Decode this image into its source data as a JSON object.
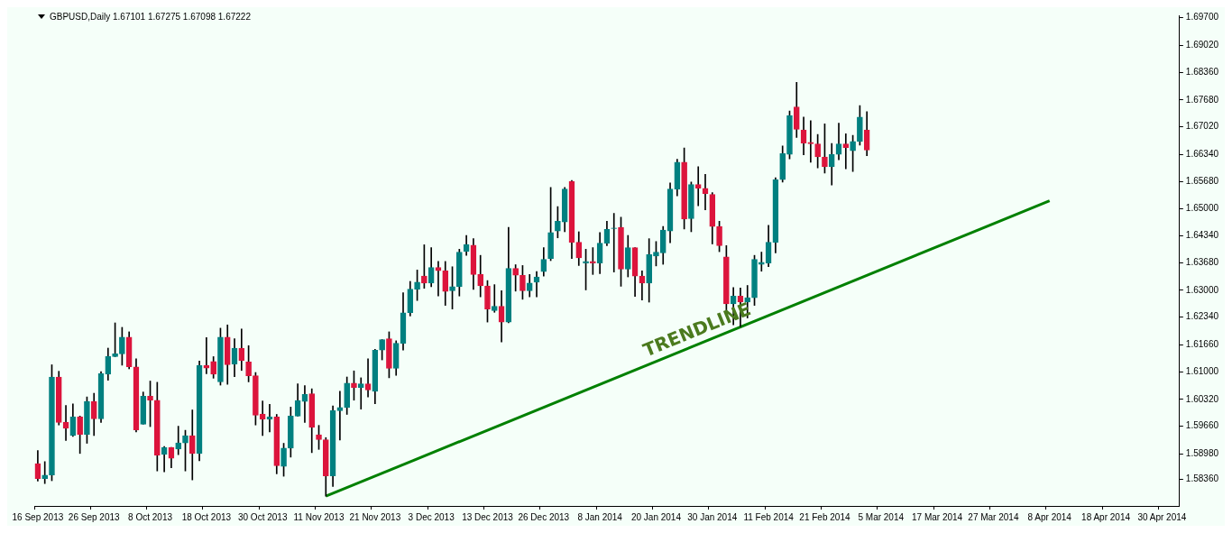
{
  "chart_data": {
    "type": "candlestick",
    "title": "GBPUSD,Daily 1.67101 1.67275 1.67098 1.67222",
    "categories": [
      "16 Sep 2013",
      null,
      null,
      null,
      null,
      null,
      null,
      null,
      "26 Sep 2013",
      null,
      null,
      null,
      null,
      null,
      null,
      null,
      "8 Oct 2013",
      null,
      null,
      null,
      null,
      null,
      null,
      null,
      "18 Oct 2013",
      null,
      null,
      null,
      null,
      null,
      null,
      null,
      "30 Oct 2013",
      null,
      null,
      null,
      null,
      null,
      null,
      null,
      "11 Nov 2013",
      null,
      null,
      null,
      null,
      null,
      null,
      null,
      "21 Nov 2013",
      null,
      null,
      null,
      null,
      null,
      null,
      null,
      "3 Dec 2013",
      null,
      null,
      null,
      null,
      null,
      null,
      null,
      "13 Dec 2013",
      null,
      null,
      null,
      null,
      null,
      null,
      null,
      "26 Dec 2013",
      null,
      null,
      null,
      null,
      null,
      null,
      null,
      "8 Jan 2014",
      null,
      null,
      null,
      null,
      null,
      null,
      null,
      "20 Jan 2014",
      null,
      null,
      null,
      null,
      null,
      null,
      null,
      "30 Jan 2014",
      null,
      null,
      null,
      null,
      null,
      null,
      null,
      "11 Feb 2014",
      null,
      null,
      null,
      null,
      null,
      null,
      null,
      "21 Feb 2014",
      null,
      null,
      null,
      null,
      null,
      null,
      null,
      "5 Mar 2014",
      null,
      null,
      null,
      null,
      null,
      null,
      null,
      "17 Mar 2014",
      null,
      null,
      null,
      null,
      null,
      null,
      null,
      "27 Mar 2014",
      null,
      null,
      null,
      null,
      null,
      null,
      null,
      "8 Apr 2014",
      null,
      null,
      null,
      null,
      null,
      null,
      null,
      "18 Apr 2014",
      null,
      null,
      null,
      null,
      null,
      null,
      null,
      "30 Apr 2014",
      null,
      null
    ],
    "ohlc": [
      [
        1.5874,
        1.5906,
        1.5831,
        1.5837
      ],
      [
        1.5837,
        1.5879,
        1.5825,
        1.5846
      ],
      [
        1.5846,
        1.6117,
        1.5832,
        1.6087
      ],
      [
        1.6087,
        1.6101,
        1.5969,
        1.5975
      ],
      [
        1.5976,
        1.6017,
        1.5931,
        1.5961
      ],
      [
        1.5943,
        1.6021,
        1.5941,
        1.5989
      ],
      [
        1.5989,
        1.5991,
        1.5899,
        1.5946
      ],
      [
        1.5946,
        1.6038,
        1.5924,
        1.6027
      ],
      [
        1.6027,
        1.6047,
        1.5943,
        1.5984
      ],
      [
        1.5984,
        1.61,
        1.5975,
        1.6095
      ],
      [
        1.6094,
        1.6158,
        1.6079,
        1.6138
      ],
      [
        1.6137,
        1.622,
        1.6137,
        1.6144
      ],
      [
        1.6144,
        1.6209,
        1.6116,
        1.6185
      ],
      [
        1.6185,
        1.6198,
        1.6107,
        1.6112
      ],
      [
        1.6112,
        1.6132,
        1.5952,
        1.5957
      ],
      [
        1.5971,
        1.605,
        1.5971,
        1.604
      ],
      [
        1.604,
        1.6077,
        1.5965,
        1.603
      ],
      [
        1.603,
        1.6074,
        1.5856,
        1.5895
      ],
      [
        1.5897,
        1.5916,
        1.5854,
        1.5914
      ],
      [
        1.5914,
        1.5914,
        1.5864,
        1.5887
      ],
      [
        1.591,
        1.5966,
        1.5896,
        1.5925
      ],
      [
        1.5925,
        1.5956,
        1.5856,
        1.5943
      ],
      [
        1.5943,
        1.6006,
        1.5834,
        1.5899
      ],
      [
        1.5899,
        1.6126,
        1.5881,
        1.6115
      ],
      [
        1.6115,
        1.6184,
        1.6095,
        1.6109
      ],
      [
        1.6125,
        1.6137,
        1.6084,
        1.6094
      ],
      [
        1.6075,
        1.6207,
        1.6067,
        1.6185
      ],
      [
        1.6185,
        1.6215,
        1.6069,
        1.6117
      ],
      [
        1.6119,
        1.6181,
        1.6088,
        1.6158
      ],
      [
        1.6158,
        1.6205,
        1.6103,
        1.6127
      ],
      [
        1.6124,
        1.6164,
        1.6075,
        1.609
      ],
      [
        1.609,
        1.6098,
        1.5969,
        1.5993
      ],
      [
        1.5996,
        1.6028,
        1.5943,
        1.5983
      ],
      [
        1.5983,
        1.602,
        1.5952,
        1.5989
      ],
      [
        1.5989,
        1.5995,
        1.5849,
        1.5869
      ],
      [
        1.5867,
        1.5924,
        1.5843,
        1.5912
      ],
      [
        1.5912,
        1.6013,
        1.589,
        1.5991
      ],
      [
        1.5991,
        1.607,
        1.5991,
        1.6029
      ],
      [
        1.6027,
        1.6066,
        1.5975,
        1.6044
      ],
      [
        1.6046,
        1.6058,
        1.5901,
        1.5963
      ],
      [
        1.5945,
        1.5968,
        1.5909,
        1.5933
      ],
      [
        1.5933,
        1.5938,
        1.5794,
        1.5844
      ],
      [
        1.5844,
        1.6016,
        1.5818,
        1.6004
      ],
      [
        1.6004,
        1.6052,
        1.5932,
        1.6012
      ],
      [
        1.6012,
        1.6087,
        1.5995,
        1.6072
      ],
      [
        1.6072,
        1.6102,
        1.603,
        1.6061
      ],
      [
        1.6061,
        1.6085,
        1.6008,
        1.607
      ],
      [
        1.607,
        1.6132,
        1.6038,
        1.6055
      ],
      [
        1.6052,
        1.6155,
        1.6021,
        1.6153
      ],
      [
        1.6153,
        1.6179,
        1.6129,
        1.6179
      ],
      [
        1.6181,
        1.6198,
        1.6085,
        1.6108
      ],
      [
        1.6108,
        1.6176,
        1.6091,
        1.617
      ],
      [
        1.617,
        1.6294,
        1.6153,
        1.6245
      ],
      [
        1.6245,
        1.6322,
        1.6237,
        1.6303
      ],
      [
        1.6303,
        1.635,
        1.6275,
        1.632
      ],
      [
        1.6335,
        1.6412,
        1.6305,
        1.6318
      ],
      [
        1.6318,
        1.6405,
        1.6309,
        1.6356
      ],
      [
        1.6356,
        1.6371,
        1.6286,
        1.6348
      ],
      [
        1.6348,
        1.6371,
        1.6263,
        1.6297
      ],
      [
        1.6299,
        1.6358,
        1.6254,
        1.6309
      ],
      [
        1.6309,
        1.6401,
        1.6286,
        1.6394
      ],
      [
        1.6396,
        1.6435,
        1.6386,
        1.6413
      ],
      [
        1.6411,
        1.6427,
        1.6302,
        1.6339
      ],
      [
        1.6339,
        1.6386,
        1.6284,
        1.6311
      ],
      [
        1.6311,
        1.6324,
        1.6222,
        1.6254
      ],
      [
        1.625,
        1.6314,
        1.6246,
        1.6261
      ],
      [
        1.6261,
        1.6299,
        1.6173,
        1.6222
      ],
      [
        1.6222,
        1.6455,
        1.622,
        1.6354
      ],
      [
        1.6354,
        1.6363,
        1.6298,
        1.6337
      ],
      [
        1.6337,
        1.6361,
        1.6278,
        1.6299
      ],
      [
        1.6299,
        1.6339,
        1.6284,
        1.6318
      ],
      [
        1.632,
        1.6346,
        1.6284,
        1.6333
      ],
      [
        1.6346,
        1.6405,
        1.6335,
        1.6376
      ],
      [
        1.6378,
        1.6553,
        1.6373,
        1.6442
      ],
      [
        1.6446,
        1.6506,
        1.6429,
        1.647
      ],
      [
        1.6468,
        1.6553,
        1.6444,
        1.6549
      ],
      [
        1.6568,
        1.657,
        1.6378,
        1.6418
      ],
      [
        1.6418,
        1.6444,
        1.6361,
        1.638
      ],
      [
        1.6367,
        1.6401,
        1.6301,
        1.6371
      ],
      [
        1.6371,
        1.6405,
        1.6339,
        1.6367
      ],
      [
        1.6367,
        1.6442,
        1.6341,
        1.6416
      ],
      [
        1.6416,
        1.647,
        1.641,
        1.645
      ],
      [
        1.6452,
        1.6489,
        1.6345,
        1.6453
      ],
      [
        1.6455,
        1.648,
        1.631,
        1.6352
      ],
      [
        1.6352,
        1.6435,
        1.6333,
        1.6405
      ],
      [
        1.6405,
        1.6405,
        1.6285,
        1.6335
      ],
      [
        1.6335,
        1.6348,
        1.6276,
        1.6318
      ],
      [
        1.6318,
        1.6427,
        1.6271,
        1.6388
      ],
      [
        1.6384,
        1.642,
        1.636,
        1.6394
      ],
      [
        1.6392,
        1.6457,
        1.6364,
        1.6448
      ],
      [
        1.6446,
        1.6564,
        1.6417,
        1.6549
      ],
      [
        1.6549,
        1.6622,
        1.6532,
        1.6615
      ],
      [
        1.6615,
        1.665,
        1.6451,
        1.6475
      ],
      [
        1.6476,
        1.6566,
        1.6444,
        1.656
      ],
      [
        1.656,
        1.6604,
        1.6508,
        1.6551
      ],
      [
        1.6551,
        1.6585,
        1.6498,
        1.6538
      ],
      [
        1.6536,
        1.654,
        1.6414,
        1.6457
      ],
      [
        1.6457,
        1.647,
        1.6395,
        1.641
      ],
      [
        1.6382,
        1.641,
        1.625,
        1.6267
      ],
      [
        1.6267,
        1.6307,
        1.6215,
        1.6286
      ],
      [
        1.6286,
        1.6306,
        1.6211,
        1.6271
      ],
      [
        1.6271,
        1.6312,
        1.6232,
        1.6282
      ],
      [
        1.6282,
        1.6386,
        1.6263,
        1.6376
      ],
      [
        1.6364,
        1.6394,
        1.6347,
        1.6369
      ],
      [
        1.6367,
        1.646,
        1.6358,
        1.6418
      ],
      [
        1.6418,
        1.6577,
        1.6392,
        1.6572
      ],
      [
        1.6572,
        1.6655,
        1.6566,
        1.6636
      ],
      [
        1.6634,
        1.6741,
        1.6623,
        1.673
      ],
      [
        1.6751,
        1.6811,
        1.6676,
        1.6696
      ],
      [
        1.6694,
        1.6726,
        1.6633,
        1.6662
      ],
      [
        1.6664,
        1.6717,
        1.6615,
        1.666
      ],
      [
        1.666,
        1.6683,
        1.6601,
        1.6628
      ],
      [
        1.6628,
        1.6709,
        1.6588,
        1.6604
      ],
      [
        1.6604,
        1.6661,
        1.6559,
        1.6634
      ],
      [
        1.6634,
        1.6711,
        1.6621,
        1.666
      ],
      [
        1.666,
        1.6685,
        1.6599,
        1.6651
      ],
      [
        1.6643,
        1.6681,
        1.6592,
        1.6666
      ],
      [
        1.6666,
        1.6754,
        1.6657,
        1.6726
      ],
      [
        1.6694,
        1.6739,
        1.6631,
        1.6645
      ],
      null,
      null,
      null,
      null,
      null,
      null,
      null,
      null,
      null,
      null,
      null,
      null,
      null,
      null,
      null,
      null,
      null,
      null,
      null,
      null,
      null,
      null,
      null,
      null,
      null,
      null,
      null,
      null,
      null,
      null,
      null,
      null,
      null,
      null,
      null,
      null,
      null,
      null,
      null,
      null,
      null,
      null,
      null,
      null
    ],
    "colors": [
      "#dc143c",
      "#008080",
      "#008080",
      "#dc143c",
      "#dc143c",
      "#008080",
      "#dc143c",
      "#008080",
      "#dc143c",
      "#008080",
      "#008080",
      "#008080",
      "#008080",
      "#dc143c",
      "#dc143c",
      "#008080",
      "#dc143c",
      "#dc143c",
      "#008080",
      "#dc143c",
      "#008080",
      "#008080",
      "#dc143c",
      "#008080",
      "#dc143c",
      "#dc143c",
      "#008080",
      "#dc143c",
      "#008080",
      "#dc143c",
      "#dc143c",
      "#dc143c",
      "#dc143c",
      "#008080",
      "#dc143c",
      "#008080",
      "#008080",
      "#008080",
      "#008080",
      "#dc143c",
      "#dc143c",
      "#dc143c",
      "#008080",
      "#008080",
      "#008080",
      "#dc143c",
      "#008080",
      "#dc143c",
      "#008080",
      "#008080",
      "#dc143c",
      "#008080",
      "#008080",
      "#008080",
      "#008080",
      "#dc143c",
      "#008080",
      "#dc143c",
      "#dc143c",
      "#008080",
      "#008080",
      "#008080",
      "#dc143c",
      "#dc143c",
      "#dc143c",
      "#008080",
      "#dc143c",
      "#008080",
      "#dc143c",
      "#dc143c",
      "#008080",
      "#008080",
      "#008080",
      "#008080",
      "#008080",
      "#008080",
      "#dc143c",
      "#dc143c",
      "#008080",
      "#dc143c",
      "#008080",
      "#008080",
      "#008080",
      "#dc143c",
      "#008080",
      "#dc143c",
      "#dc143c",
      "#008080",
      "#008080",
      "#008080",
      "#008080",
      "#008080",
      "#dc143c",
      "#008080",
      "#dc143c",
      "#dc143c",
      "#dc143c",
      "#dc143c",
      "#dc143c",
      "#008080",
      "#dc143c",
      "#008080",
      "#008080",
      "#008080",
      "#008080",
      "#008080",
      "#008080",
      "#008080",
      "#dc143c",
      "#dc143c",
      "#dc143c",
      "#dc143c",
      "#dc143c",
      "#008080",
      "#008080",
      "#dc143c",
      "#008080",
      "#008080",
      "#dc143c",
      null,
      null,
      null,
      null,
      null,
      null,
      null,
      null,
      null,
      null,
      null,
      null,
      null,
      null,
      null,
      null,
      null,
      null,
      null,
      null,
      null,
      null,
      null,
      null,
      null,
      null,
      null,
      null,
      null,
      null,
      null,
      null,
      null,
      null,
      null,
      null,
      null,
      null,
      null,
      null,
      null,
      null,
      null,
      null
    ],
    "series": [
      {
        "type": "line",
        "color": "#008000",
        "values": [
          null,
          null,
          null,
          null,
          null,
          null,
          null,
          null,
          null,
          null,
          null,
          null,
          null,
          null,
          null,
          null,
          null,
          null,
          null,
          null,
          null,
          null,
          null,
          null,
          null,
          null,
          null,
          null,
          null,
          null,
          null,
          null,
          null,
          null,
          null,
          null,
          null,
          null,
          null,
          null,
          null,
          1.5794,
          null,
          null,
          null,
          null,
          null,
          null,
          null,
          null,
          null,
          null,
          null,
          null,
          null,
          null,
          null,
          null,
          null,
          null,
          null,
          null,
          null,
          null,
          null,
          null,
          null,
          null,
          null,
          null,
          null,
          null,
          null,
          null,
          null,
          null,
          null,
          null,
          null,
          null,
          null,
          null,
          null,
          null,
          null,
          null,
          null,
          null,
          null,
          null,
          null,
          null,
          null,
          null,
          null,
          null,
          null,
          null,
          null,
          null,
          null,
          null,
          null,
          null,
          null,
          null,
          null,
          null,
          null,
          null,
          null,
          null,
          null,
          null,
          null,
          null,
          null,
          null,
          null,
          null,
          null,
          null,
          null,
          null,
          null,
          null,
          null,
          null,
          null,
          null,
          null,
          null,
          null,
          null,
          null,
          null,
          null,
          null,
          null,
          null,
          null,
          null,
          null,
          null,
          1.652,
          null,
          null,
          null,
          null,
          null,
          null,
          null,
          null,
          null,
          null,
          null,
          null,
          null,
          null,
          null,
          null,
          null,
          null
        ]
      }
    ],
    "annotations": [
      "TRENDLINE"
    ],
    "ylim": [
      1.577,
      1.6976
    ],
    "yticks": [
      {
        "value": 1.697,
        "label": "1.69700"
      },
      {
        "value": 1.6902,
        "label": "1.69020"
      },
      {
        "value": 1.6836,
        "label": "1.68360"
      },
      {
        "value": 1.6768,
        "label": "1.67680"
      },
      {
        "value": 1.6702,
        "label": "1.67020"
      },
      {
        "value": 1.6634,
        "label": "1.66340"
      },
      {
        "value": 1.6568,
        "label": "1.65680"
      },
      {
        "value": 1.65,
        "label": "1.65000"
      },
      {
        "value": 1.6434,
        "label": "1.64340"
      },
      {
        "value": 1.6368,
        "label": "1.63680"
      },
      {
        "value": 1.63,
        "label": "1.63000"
      },
      {
        "value": 1.6234,
        "label": "1.62340"
      },
      {
        "value": 1.6166,
        "label": "1.61660"
      },
      {
        "value": 1.61,
        "label": "1.61000"
      },
      {
        "value": 1.6032,
        "label": "1.60320"
      },
      {
        "value": 1.5966,
        "label": "1.59660"
      },
      {
        "value": 1.5898,
        "label": "1.58980"
      },
      {
        "value": 1.5836,
        "label": "1.58360"
      }
    ],
    "marker": "none"
  }
}
